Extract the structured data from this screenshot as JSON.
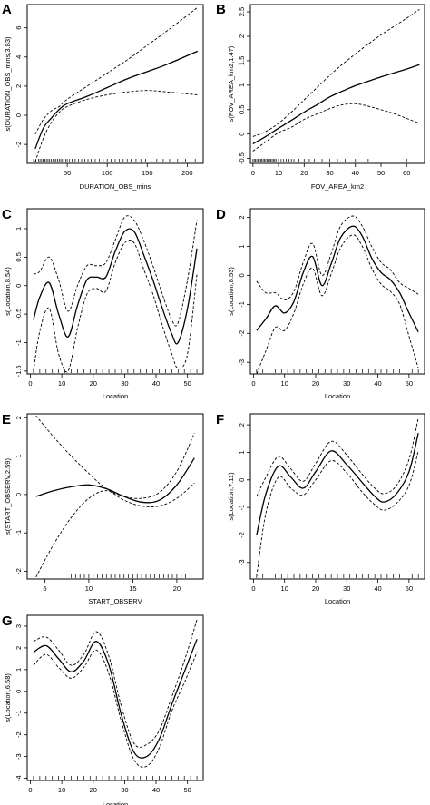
{
  "chart_data": [
    {
      "type": "line",
      "panel_label": "A",
      "xlabel": "DURATION_OBS_mins",
      "ylabel": "s(DURATION_OBS_mins,3.83)",
      "xlim": [
        0,
        220
      ],
      "ylim": [
        -3.3,
        7.6
      ],
      "xticks": [
        50,
        100,
        150,
        200
      ],
      "yticks": [
        -2,
        0,
        2,
        4,
        6
      ],
      "x": [
        10,
        20,
        30,
        40,
        50,
        75,
        100,
        125,
        150,
        175,
        213
      ],
      "fit": [
        -2.3,
        -0.9,
        -0.2,
        0.4,
        0.8,
        1.3,
        1.9,
        2.5,
        3.0,
        3.5,
        4.4
      ],
      "upper": [
        -1.3,
        -0.3,
        0.3,
        0.6,
        1.1,
        2.0,
        2.9,
        3.8,
        4.8,
        5.8,
        7.4
      ],
      "lower": [
        -3.2,
        -1.6,
        -0.5,
        0.2,
        0.6,
        1.1,
        1.4,
        1.6,
        1.7,
        1.6,
        1.4
      ],
      "rug": [
        8,
        11,
        14,
        16,
        18,
        20,
        22,
        24,
        26,
        28,
        30,
        32,
        34,
        36,
        38,
        40,
        42,
        44,
        46,
        48,
        50,
        53,
        56,
        60,
        64,
        68,
        72,
        76,
        80,
        85,
        90,
        95,
        100,
        105,
        110,
        115,
        120,
        125,
        130,
        136,
        142,
        148,
        155,
        162,
        170,
        178,
        188,
        198,
        210
      ]
    },
    {
      "type": "line",
      "panel_label": "B",
      "xlabel": "FOV_AREA_km2",
      "ylabel": "s(FOV_AREA_km2,1.47)",
      "xlim": [
        -1,
        67
      ],
      "ylim": [
        -0.6,
        2.65
      ],
      "xticks": [
        0,
        10,
        20,
        30,
        40,
        50,
        60
      ],
      "yticks": [
        -0.5,
        0,
        0.5,
        1,
        1.5,
        2,
        2.5
      ],
      "x": [
        0,
        5,
        10,
        15,
        20,
        25,
        30,
        35,
        40,
        45,
        50,
        55,
        60,
        65
      ],
      "fit": [
        -0.2,
        -0.05,
        0.12,
        0.28,
        0.45,
        0.6,
        0.76,
        0.88,
        0.99,
        1.08,
        1.17,
        1.25,
        1.33,
        1.42
      ],
      "upper": [
        -0.05,
        0.05,
        0.22,
        0.45,
        0.7,
        0.95,
        1.2,
        1.43,
        1.64,
        1.84,
        2.03,
        2.2,
        2.37,
        2.55
      ],
      "lower": [
        -0.35,
        -0.16,
        0.03,
        0.14,
        0.3,
        0.41,
        0.52,
        0.6,
        0.62,
        0.57,
        0.5,
        0.42,
        0.32,
        0.22
      ],
      "rug": [
        0,
        0.5,
        1,
        1.5,
        2,
        2.5,
        3,
        3.5,
        4,
        4.5,
        5,
        5.5,
        6,
        6.5,
        7,
        7.5,
        8,
        8.5,
        9,
        10,
        11,
        12,
        13,
        14,
        15,
        16,
        18,
        20,
        22,
        24,
        27,
        30,
        33,
        36,
        40,
        45,
        52,
        60
      ]
    },
    {
      "type": "line",
      "panel_label": "C",
      "xlabel": "Location",
      "ylabel": "s(Location,8.54)",
      "xlim": [
        -1,
        55
      ],
      "ylim": [
        -1.55,
        1.35
      ],
      "xticks": [
        0,
        10,
        20,
        30,
        40,
        50
      ],
      "yticks": [
        -1.5,
        -1.0,
        -0.5,
        0.0,
        0.5,
        1.0
      ],
      "x": [
        1,
        3,
        6,
        9,
        12,
        15,
        18,
        21,
        24,
        27,
        30,
        33,
        36,
        39,
        42,
        45,
        47,
        50,
        53
      ],
      "fit": [
        -0.6,
        -0.2,
        0.05,
        -0.5,
        -0.9,
        -0.35,
        0.1,
        0.15,
        0.15,
        0.6,
        0.95,
        0.95,
        0.55,
        0.1,
        -0.4,
        -0.85,
        -1.0,
        -0.4,
        0.65
      ],
      "upper": [
        0.2,
        0.25,
        0.5,
        0.1,
        -0.45,
        0.0,
        0.35,
        0.35,
        0.4,
        0.8,
        1.2,
        1.15,
        0.8,
        0.35,
        -0.15,
        -0.6,
        -0.65,
        0.1,
        1.15
      ],
      "lower": [
        -1.5,
        -0.8,
        -0.4,
        -1.2,
        -1.5,
        -0.75,
        -0.15,
        -0.05,
        -0.1,
        0.4,
        0.75,
        0.75,
        0.3,
        -0.15,
        -0.7,
        -1.2,
        -1.45,
        -1.2,
        0.2
      ],
      "rug": [
        1,
        3,
        5,
        7,
        9,
        11,
        13,
        15,
        17,
        19,
        21,
        23,
        25,
        27,
        29,
        31,
        33,
        35,
        37,
        39,
        41,
        43,
        45,
        47,
        49,
        51,
        53
      ]
    },
    {
      "type": "line",
      "panel_label": "D",
      "xlabel": "Location",
      "ylabel": "s(Location,8.53)",
      "xlim": [
        -1,
        55
      ],
      "ylim": [
        -3.4,
        2.3
      ],
      "xticks": [
        0,
        10,
        20,
        30,
        40,
        50
      ],
      "yticks": [
        -3,
        -2,
        -1,
        0,
        1,
        2
      ],
      "x": [
        1,
        4,
        7,
        10,
        13,
        16,
        19,
        22,
        25,
        28,
        32,
        35,
        38,
        41,
        44,
        47,
        50,
        53
      ],
      "fit": [
        -1.9,
        -1.5,
        -1.05,
        -1.3,
        -0.9,
        0.1,
        0.65,
        -0.35,
        0.4,
        1.3,
        1.7,
        1.35,
        0.6,
        0.1,
        -0.15,
        -0.6,
        -1.3,
        -1.95
      ],
      "upper": [
        -0.2,
        -0.6,
        -0.6,
        -0.85,
        -0.55,
        0.45,
        1.1,
        0.0,
        0.75,
        1.7,
        2.05,
        1.7,
        1.0,
        0.45,
        0.2,
        -0.25,
        -0.45,
        -0.65
      ],
      "lower": [
        -3.4,
        -2.6,
        -1.8,
        -1.9,
        -1.3,
        -0.3,
        0.25,
        -0.7,
        0.05,
        0.95,
        1.4,
        1.0,
        0.25,
        -0.3,
        -0.55,
        -1.0,
        -2.1,
        -3.2
      ],
      "rug": [
        1,
        3,
        5,
        7,
        9,
        11,
        13,
        15,
        17,
        19,
        21,
        23,
        25,
        27,
        29,
        31,
        33,
        35,
        37,
        39,
        41,
        43,
        45,
        47,
        49,
        51,
        53
      ]
    },
    {
      "type": "line",
      "panel_label": "E",
      "xlabel": "START_OBSERV",
      "ylabel": "s(START_OBSERV,2.59)",
      "xlim": [
        3,
        23
      ],
      "ylim": [
        -2.2,
        2.1
      ],
      "xticks": [
        5,
        10,
        15,
        20
      ],
      "yticks": [
        -2,
        -1,
        0,
        1,
        2
      ],
      "x": [
        4,
        6,
        8,
        10,
        12,
        14,
        16,
        18,
        20,
        22
      ],
      "fit": [
        -0.05,
        0.1,
        0.2,
        0.25,
        0.15,
        -0.05,
        -0.2,
        -0.15,
        0.25,
        0.95
      ],
      "upper": [
        2.05,
        1.5,
        1.0,
        0.55,
        0.15,
        -0.05,
        -0.1,
        0.05,
        0.6,
        1.6
      ],
      "lower": [
        -2.15,
        -1.3,
        -0.6,
        -0.1,
        0.1,
        -0.15,
        -0.3,
        -0.3,
        -0.1,
        0.3
      ],
      "rug": [
        8,
        8.5,
        9,
        9.5,
        10,
        10.5,
        11,
        11.5,
        12,
        12.5,
        13,
        13.5,
        14,
        14.5,
        15,
        15.5,
        16,
        16.5,
        17,
        17.5,
        18,
        18.5,
        19,
        19.5,
        20,
        20.5,
        21
      ]
    },
    {
      "type": "line",
      "panel_label": "F",
      "xlabel": "Location",
      "ylabel": "s(Location,7.11)",
      "xlim": [
        -1,
        55
      ],
      "ylim": [
        -3.6,
        2.4
      ],
      "xticks": [
        0,
        10,
        20,
        30,
        40,
        50
      ],
      "yticks": [
        -3,
        -2,
        -1,
        0,
        1,
        2
      ],
      "x": [
        1,
        4,
        8,
        12,
        16,
        20,
        25,
        30,
        35,
        39,
        42,
        46,
        50,
        53
      ],
      "fit": [
        -2.0,
        -0.5,
        0.5,
        0.1,
        -0.3,
        0.3,
        1.05,
        0.55,
        -0.1,
        -0.6,
        -0.8,
        -0.5,
        0.3,
        1.7
      ],
      "upper": [
        -0.6,
        0.1,
        0.85,
        0.4,
        -0.05,
        0.6,
        1.4,
        0.9,
        0.2,
        -0.3,
        -0.5,
        -0.2,
        0.75,
        2.25
      ],
      "lower": [
        -3.5,
        -1.2,
        0.1,
        -0.3,
        -0.55,
        0.0,
        0.7,
        0.25,
        -0.45,
        -0.9,
        -1.1,
        -0.85,
        -0.2,
        1.05
      ],
      "rug": [
        1,
        3,
        5,
        7,
        9,
        11,
        13,
        15,
        17,
        19,
        21,
        23,
        25,
        27,
        29,
        31,
        33,
        35,
        37,
        39,
        41,
        43,
        45,
        47,
        49,
        51,
        53
      ]
    },
    {
      "type": "line",
      "panel_label": "G",
      "xlabel": "Location",
      "ylabel": "s(Location,6.58)",
      "xlim": [
        -1,
        55
      ],
      "ylim": [
        -4.1,
        3.5
      ],
      "xticks": [
        0,
        10,
        20,
        30,
        40,
        50
      ],
      "yticks": [
        -4,
        -3,
        -2,
        -1,
        0,
        1,
        2,
        3
      ],
      "x": [
        1,
        5,
        9,
        13,
        17,
        21,
        25,
        29,
        33,
        37,
        41,
        45,
        49,
        53
      ],
      "fit": [
        1.8,
        2.1,
        1.5,
        0.9,
        1.4,
        2.3,
        1.2,
        -1.1,
        -2.8,
        -3.0,
        -2.2,
        -0.6,
        0.9,
        2.4
      ],
      "upper": [
        2.3,
        2.5,
        1.9,
        1.2,
        1.7,
        2.75,
        1.6,
        -0.7,
        -2.4,
        -2.45,
        -1.8,
        -0.25,
        1.4,
        3.3
      ],
      "lower": [
        1.2,
        1.7,
        1.1,
        0.6,
        1.1,
        1.9,
        0.8,
        -1.4,
        -3.15,
        -3.45,
        -2.6,
        -0.9,
        0.4,
        1.8
      ],
      "rug": [
        1,
        3,
        5,
        7,
        9,
        11,
        13,
        15,
        17,
        19,
        21,
        23,
        25,
        27,
        29,
        31,
        33,
        35,
        37,
        39,
        41,
        43,
        45,
        47,
        49,
        51,
        53
      ]
    }
  ]
}
